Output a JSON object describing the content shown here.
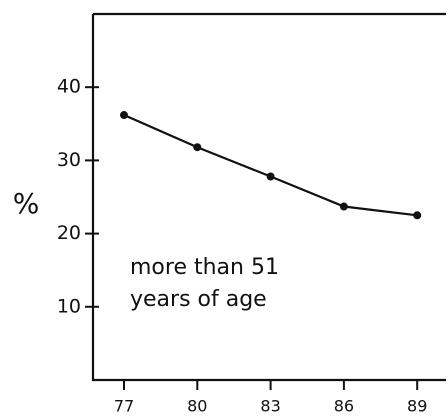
{
  "chart_data": {
    "type": "line",
    "y_label": "%",
    "annotation": [
      "more than 51",
      "years of age"
    ],
    "categories": [
      "77",
      "80",
      "83",
      "86",
      "89"
    ],
    "series": [
      {
        "name": "more than 51 years of age",
        "color": "#111111",
        "values": [
          36.2,
          31.8,
          27.8,
          23.7,
          22.5
        ]
      }
    ],
    "ylim": [
      0,
      50
    ],
    "yticks": [
      10,
      20,
      30,
      40
    ],
    "grid": false
  }
}
